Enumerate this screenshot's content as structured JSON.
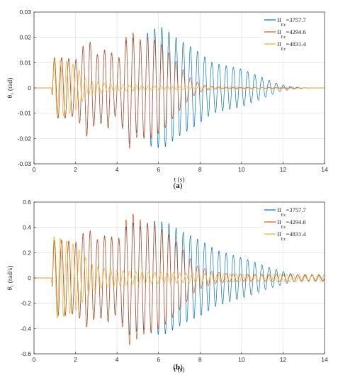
{
  "chart_data": [
    {
      "type": "line",
      "caption_label": "a",
      "xlabel": "t (s)",
      "ylabel": "θ₁ (rad)",
      "xlim": [
        0,
        14
      ],
      "ylim": [
        -0.03,
        0.03
      ],
      "xticks": [
        "0",
        "2",
        "4",
        "6",
        "8",
        "10",
        "12",
        "14"
      ],
      "yticks": [
        "-0.03",
        "-0.02",
        "-0.01",
        "0",
        "0.01",
        "0.02",
        "0.03"
      ],
      "grid": true,
      "legend_position": "top-right",
      "legend": [
        {
          "main": "II",
          "sub": "Ec",
          "value": "=3757.7"
        },
        {
          "main": "II",
          "sub": "Ec",
          "value": "=4294.6"
        },
        {
          "main": "II",
          "sub": "Ec",
          "value": "=4831.4"
        }
      ],
      "series": [
        {
          "name": "II Ec =3757.7",
          "color": "#0072BD",
          "envelope": [
            [
              0,
              0
            ],
            [
              0.85,
              0
            ],
            [
              0.9,
              0.012
            ],
            [
              1.5,
              0.012
            ],
            [
              2.0,
              0.011
            ],
            [
              2.6,
              0.02
            ],
            [
              3.0,
              0.013
            ],
            [
              3.6,
              0.016
            ],
            [
              4.0,
              0.01
            ],
            [
              4.6,
              0.022
            ],
            [
              5.0,
              0.017
            ],
            [
              5.6,
              0.023
            ],
            [
              6.2,
              0.024
            ],
            [
              7.0,
              0.019
            ],
            [
              7.8,
              0.015
            ],
            [
              8.6,
              0.01
            ],
            [
              9.4,
              0.0085
            ],
            [
              10.0,
              0.0075
            ],
            [
              10.6,
              0.0055
            ],
            [
              11.2,
              0.0035
            ],
            [
              11.8,
              0.0015
            ],
            [
              12.5,
              0.0004
            ],
            [
              13.0,
              0.0001
            ],
            [
              14.0,
              0.0
            ]
          ]
        },
        {
          "name": "II Ec =4294.6",
          "color": "#D95319",
          "envelope": [
            [
              0,
              0
            ],
            [
              0.85,
              0
            ],
            [
              0.9,
              0.012
            ],
            [
              1.5,
              0.012
            ],
            [
              2.0,
              0.011
            ],
            [
              2.6,
              0.02
            ],
            [
              3.0,
              0.013
            ],
            [
              3.6,
              0.016
            ],
            [
              4.0,
              0.01
            ],
            [
              4.6,
              0.024
            ],
            [
              5.0,
              0.019
            ],
            [
              5.6,
              0.02
            ],
            [
              6.2,
              0.017
            ],
            [
              7.0,
              0.009
            ],
            [
              7.6,
              0.0035
            ],
            [
              8.2,
              0.001
            ],
            [
              9.0,
              0.0003
            ],
            [
              14.0,
              0.0
            ]
          ]
        },
        {
          "name": "II Ec =4831.4",
          "color": "#EDB120",
          "envelope": [
            [
              0,
              0
            ],
            [
              0.85,
              0
            ],
            [
              0.9,
              0.011
            ],
            [
              1.5,
              0.011
            ],
            [
              2.0,
              0.009
            ],
            [
              2.5,
              0.0035
            ],
            [
              3.0,
              0.0025
            ],
            [
              3.6,
              0.0015
            ],
            [
              4.5,
              0.0012
            ],
            [
              6.0,
              0.0008
            ],
            [
              8.0,
              0.0005
            ],
            [
              10.0,
              0.0003
            ],
            [
              12.0,
              0.0002
            ],
            [
              14.0,
              0.0
            ]
          ]
        }
      ]
    },
    {
      "type": "line",
      "caption_label": "b",
      "xlabel": "t (s)",
      "ylabel": "θ̇₁ (rad/s)",
      "xlim": [
        0,
        14
      ],
      "ylim": [
        -0.6,
        0.6
      ],
      "xticks": [
        "0",
        "2",
        "4",
        "6",
        "8",
        "10",
        "12",
        "14"
      ],
      "yticks": [
        "-0.6",
        "-0.4",
        "-0.2",
        "0",
        "0.2",
        "0.4",
        "0.6"
      ],
      "grid": true,
      "legend_position": "top-right",
      "legend": [
        {
          "main": "II",
          "sub": "Ec",
          "value": "=3757.7"
        },
        {
          "main": "II",
          "sub": "Ec",
          "value": "=4294.6"
        },
        {
          "main": "II",
          "sub": "Ec",
          "value": "=4831.4"
        }
      ],
      "series": [
        {
          "name": "II Ec =3757.7",
          "color": "#0072BD",
          "envelope": [
            [
              0,
              0
            ],
            [
              0.85,
              0
            ],
            [
              0.9,
              0.3
            ],
            [
              1.5,
              0.3
            ],
            [
              2.0,
              0.28
            ],
            [
              2.6,
              0.4
            ],
            [
              3.0,
              0.3
            ],
            [
              3.6,
              0.35
            ],
            [
              4.0,
              0.28
            ],
            [
              4.6,
              0.45
            ],
            [
              5.2,
              0.4
            ],
            [
              5.8,
              0.45
            ],
            [
              6.4,
              0.44
            ],
            [
              7.2,
              0.36
            ],
            [
              8.0,
              0.3
            ],
            [
              8.8,
              0.22
            ],
            [
              9.6,
              0.18
            ],
            [
              10.4,
              0.14
            ],
            [
              11.2,
              0.09
            ],
            [
              11.8,
              0.06
            ],
            [
              12.5,
              0.03
            ],
            [
              13.0,
              0.02
            ],
            [
              14.0,
              0.02
            ]
          ]
        },
        {
          "name": "II Ec =4294.6",
          "color": "#D95319",
          "envelope": [
            [
              0,
              0
            ],
            [
              0.85,
              0
            ],
            [
              0.9,
              0.3
            ],
            [
              1.5,
              0.3
            ],
            [
              2.0,
              0.28
            ],
            [
              2.6,
              0.4
            ],
            [
              3.0,
              0.3
            ],
            [
              3.6,
              0.35
            ],
            [
              4.0,
              0.28
            ],
            [
              4.6,
              0.53
            ],
            [
              5.2,
              0.45
            ],
            [
              5.8,
              0.42
            ],
            [
              6.4,
              0.36
            ],
            [
              7.2,
              0.22
            ],
            [
              7.8,
              0.1
            ],
            [
              8.6,
              0.05
            ],
            [
              9.5,
              0.03
            ],
            [
              14.0,
              0.025
            ]
          ]
        },
        {
          "name": "II Ec =4831.4",
          "color": "#EDB120",
          "envelope": [
            [
              0,
              0
            ],
            [
              0.85,
              0
            ],
            [
              0.9,
              0.33
            ],
            [
              1.5,
              0.3
            ],
            [
              2.0,
              0.26
            ],
            [
              2.6,
              0.14
            ],
            [
              3.2,
              0.08
            ],
            [
              4.0,
              0.06
            ],
            [
              5.0,
              0.05
            ],
            [
              7.0,
              0.04
            ],
            [
              10.0,
              0.03
            ],
            [
              14.0,
              0.03
            ]
          ]
        }
      ]
    }
  ]
}
